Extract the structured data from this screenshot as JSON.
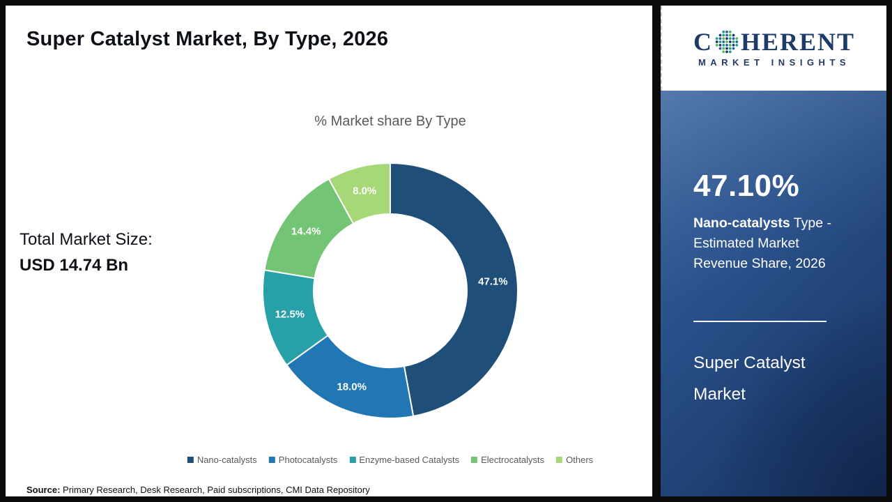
{
  "page": {
    "title": "Super Catalyst Market, By Type, 2026",
    "source_label": "Source:",
    "source_text": " Primary Research, Desk Research, Paid subscriptions, CMI Data Repository"
  },
  "left": {
    "total_label": "Total Market Size:",
    "total_value": "USD 14.74 Bn"
  },
  "chart_data": {
    "type": "pie",
    "subtype": "donut",
    "title": "% Market share By Type",
    "categories": [
      "Nano-catalysts",
      "Photocatalysts",
      "Enzyme-based Catalysts",
      "Electrocatalysts",
      "Others"
    ],
    "values": [
      47.1,
      18.0,
      12.5,
      14.4,
      8.0
    ],
    "colors": [
      "#1F4E79",
      "#2077B4",
      "#28A0A8",
      "#74C476",
      "#A6D878"
    ],
    "start_angle_deg": 0,
    "direction": "clockwise",
    "label_format": "percent",
    "legend_position": "bottom"
  },
  "logo": {
    "brand_prefix": "C",
    "brand_suffix": "HERENT",
    "subtitle": "MARKET INSIGHTS",
    "o_dot_colors": [
      "#1F9E8E",
      "#2C5F9E",
      "#57B45F",
      "#1F3864"
    ]
  },
  "panel": {
    "bg_color": "#24497F",
    "stat_value": "47.10%",
    "stat_bold": "Nano-catalysts",
    "stat_line1_rest": " Type -",
    "stat_line2": "Estimated Market",
    "stat_line3": "Revenue Share, 2026",
    "footer_line1": "Super Catalyst",
    "footer_line2": "Market"
  }
}
